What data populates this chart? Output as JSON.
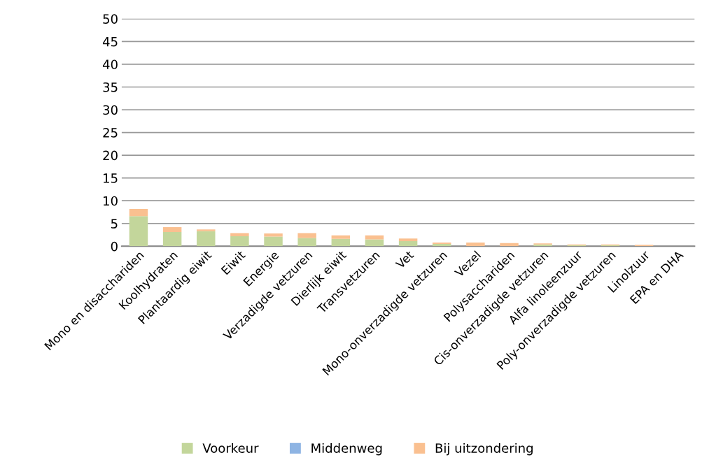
{
  "chart_data": {
    "type": "bar",
    "stacked": true,
    "categories": [
      "Mono en disacchariden",
      "Koolhydraten",
      "Plantaardig eiwit",
      "Eiwit",
      "Energie",
      "Verzadigde vetzuren",
      "Dierlijk eiwit",
      "Transvetzuren",
      "Vet",
      "Mono-onverzadigde vetzuren",
      "Vezel",
      "Polysacchariden",
      "Cis-onverzadigde vetzuren",
      "Alfa linoleenzuur",
      "Poly-onverzadigde vetzuren",
      "Linolzuur",
      "EPA en DHA"
    ],
    "series": [
      {
        "name": "Voorkeur",
        "color": "#c3d69b",
        "values": [
          6.6,
          3.1,
          3.3,
          2.2,
          2.1,
          1.8,
          1.6,
          1.5,
          1.1,
          0.5,
          0,
          0,
          0.4,
          0.2,
          0.2,
          0,
          0
        ]
      },
      {
        "name": "Middenweg",
        "color": "#8eb4e3",
        "values": [
          0,
          0,
          0,
          0,
          0,
          0,
          0,
          0,
          0,
          0,
          0,
          0,
          0,
          0,
          0,
          0,
          0
        ]
      },
      {
        "name": "Bij uitzondering",
        "color": "#fac090",
        "values": [
          1.6,
          1.1,
          0.4,
          0.7,
          0.7,
          1.1,
          0.8,
          0.9,
          0.6,
          0.3,
          0.8,
          0.7,
          0.2,
          0.2,
          0.2,
          0.3,
          0
        ]
      }
    ],
    "ylim": [
      0,
      50
    ],
    "yticks": [
      0,
      5,
      10,
      15,
      20,
      25,
      30,
      35,
      40,
      45,
      50
    ],
    "grid": "y",
    "legend": "bottom"
  }
}
